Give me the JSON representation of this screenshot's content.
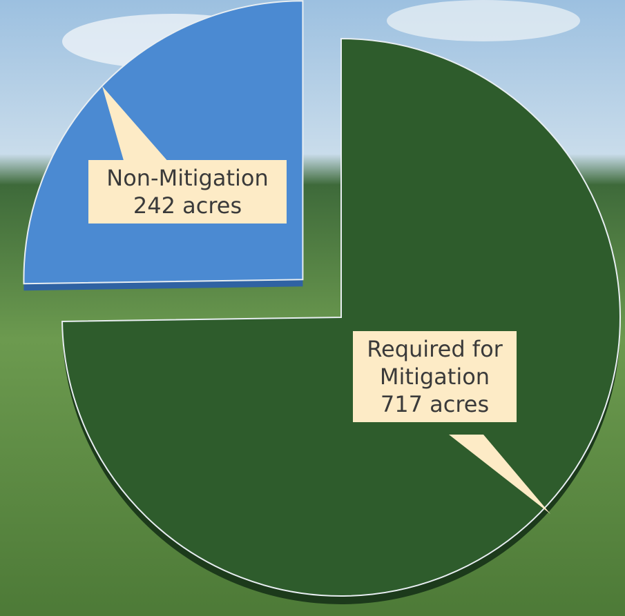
{
  "chart_data": {
    "type": "pie",
    "categories": [
      "Required for Mitigation",
      "Non-Mitigation"
    ],
    "values": [
      717,
      242
    ],
    "value_labels": [
      "717 acres",
      "242 acres"
    ],
    "colors": [
      "#2e5c2c",
      "#4b8ad2"
    ]
  }
}
